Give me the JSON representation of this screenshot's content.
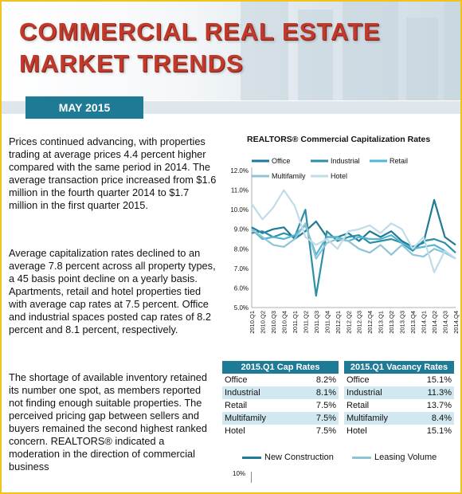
{
  "header": {
    "title_line1": "COMMERCIAL REAL ESTATE",
    "title_line2": "MARKET TRENDS",
    "date": "MAY 2015"
  },
  "body": {
    "paragraphs": [
      "Prices continued advancing, with properties trading at average prices 4.4 percent higher compared with the same period in 2014.  The average transaction price increased from $1.6 million in the fourth quarter 2014 to $1.7 million in the first quarter 2015.",
      "Average capitalization rates declined to an average 7.8 percent across all property types, a 45 basis point decline on a yearly basis. Apartments, retail and hotel properties tied with average cap rates at 7.5 percent.  Office and industrial spaces posted cap rates of 8.2 percent and 8.1 percent, respectively.",
      "The shortage of available inventory retained its number one spot, as members reported not finding enough suitable properties.  The perceived pricing gap between sellers and buyers remained the second highest ranked concern. REALTORS® indicated a moderation in the direction of commercial business"
    ]
  },
  "chart_data": {
    "type": "line",
    "title": "REALTORS® Commercial Capitalization Rates",
    "x": [
      "2010.Q1",
      "2010.Q2",
      "2010.Q3",
      "2010.Q4",
      "2011.Q1",
      "2011.Q2",
      "2011.Q3",
      "2011.Q4",
      "2012.Q1",
      "2012.Q2",
      "2012.Q3",
      "2012.Q4",
      "2013.Q1",
      "2013.Q2",
      "2013.Q3",
      "2013.Q4",
      "2014.Q1",
      "2014.Q2",
      "2014.Q3",
      "2014.Q4"
    ],
    "yticks": [
      "12.0%",
      "11.0%",
      "10.0%",
      "9.0%",
      "8.0%",
      "7.0%",
      "6.0%",
      "5.0%"
    ],
    "ylim": [
      5,
      12
    ],
    "series": [
      {
        "name": "Office",
        "color": "#1f7a95",
        "width": 2.2,
        "values": [
          9.1,
          8.8,
          9.0,
          9.1,
          8.5,
          8.9,
          9.4,
          8.6,
          8.6,
          8.8,
          8.4,
          8.9,
          8.6,
          8.9,
          8.4,
          8.1,
          8.3,
          10.5,
          8.6,
          8.2
        ]
      },
      {
        "name": "Industrial",
        "color": "#2e8ea8",
        "width": 2.2,
        "values": [
          8.8,
          8.9,
          8.6,
          8.8,
          8.6,
          10.0,
          5.6,
          8.9,
          8.4,
          8.6,
          8.7,
          8.3,
          8.4,
          8.5,
          8.3,
          7.9,
          8.4,
          8.5,
          8.3,
          7.8
        ]
      },
      {
        "name": "Retail",
        "color": "#4fb7cf",
        "width": 2.2,
        "values": [
          9.0,
          8.5,
          8.6,
          8.5,
          8.7,
          9.2,
          7.7,
          8.6,
          8.6,
          8.4,
          8.6,
          8.5,
          8.5,
          8.7,
          8.3,
          8.0,
          8.1,
          8.2,
          7.9,
          7.5
        ]
      },
      {
        "name": "Multifamily",
        "color": "#8fc3d6",
        "width": 2.2,
        "values": [
          9.0,
          8.6,
          8.2,
          8.1,
          8.5,
          9.3,
          7.5,
          8.3,
          8.5,
          8.4,
          8.0,
          7.8,
          8.2,
          7.7,
          8.2,
          7.7,
          7.6,
          8.0,
          7.8,
          7.5
        ]
      },
      {
        "name": "Hotel",
        "color": "#bfdce8",
        "width": 2.2,
        "values": [
          10.3,
          9.5,
          10.1,
          11.0,
          10.2,
          8.6,
          8.2,
          8.5,
          8.0,
          8.9,
          9.0,
          9.2,
          8.8,
          9.3,
          9.0,
          8.0,
          8.6,
          6.8,
          7.9,
          7.5
        ]
      }
    ]
  },
  "tables": {
    "cap_rates": {
      "title": "2015.Q1 Cap Rates",
      "rows": [
        {
          "label": "Office",
          "value": "8.2%"
        },
        {
          "label": "Industrial",
          "value": "8.1%"
        },
        {
          "label": "Retail",
          "value": "7.5%"
        },
        {
          "label": "Multifamily",
          "value": "7.5%"
        },
        {
          "label": "Hotel",
          "value": "7.5%"
        }
      ]
    },
    "vacancy_rates": {
      "title": "2015.Q1 Vacancy Rates",
      "rows": [
        {
          "label": "Office",
          "value": "15.1%"
        },
        {
          "label": "Industrial",
          "value": "11.3%"
        },
        {
          "label": "Retail",
          "value": "13.7%"
        },
        {
          "label": "Multifamily",
          "value": "8.4%"
        },
        {
          "label": "Hotel",
          "value": "15.1%"
        }
      ]
    }
  },
  "bottom_chart": {
    "legend": [
      {
        "name": "New Construction",
        "color": "#1f7a95"
      },
      {
        "name": "Leasing Volume",
        "color": "#8fc3d6"
      }
    ],
    "ytick": "10%"
  }
}
